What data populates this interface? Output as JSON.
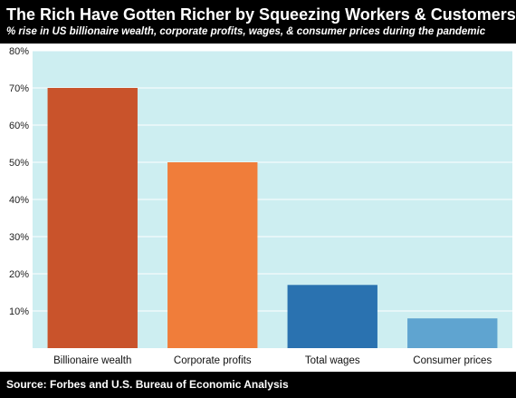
{
  "title": "The Rich Have Gotten Richer by Squeezing Workers & Customers",
  "subtitle": "% rise in US billionaire wealth, corporate profits, wages, & consumer prices during the pandemic",
  "source": "Source: Forbes and U.S. Bureau of Economic Analysis",
  "colors": {
    "plot_background": "#cdeef1",
    "gridline": "#ffffff"
  },
  "chart_data": {
    "type": "bar",
    "title": "The Rich Have Gotten Richer by Squeezing Workers & Customers",
    "subtitle": "% rise in US billionaire wealth, corporate profits, wages, & consumer prices during the pandemic",
    "xlabel": "",
    "ylabel": "",
    "categories": [
      "Billionaire wealth",
      "Corporate profits",
      "Total wages",
      "Consumer prices"
    ],
    "values": [
      70,
      50,
      17,
      8
    ],
    "colors": [
      "#c9532b",
      "#f07d3a",
      "#2a72b0",
      "#5fa4d0"
    ],
    "ylim": [
      0,
      80
    ],
    "yticks": [
      10,
      20,
      30,
      40,
      50,
      60,
      70,
      80
    ],
    "ytick_labels": [
      "10%",
      "20%",
      "30%",
      "40%",
      "50%",
      "60%",
      "70%",
      "80%"
    ],
    "grid": true,
    "legend": "none"
  }
}
